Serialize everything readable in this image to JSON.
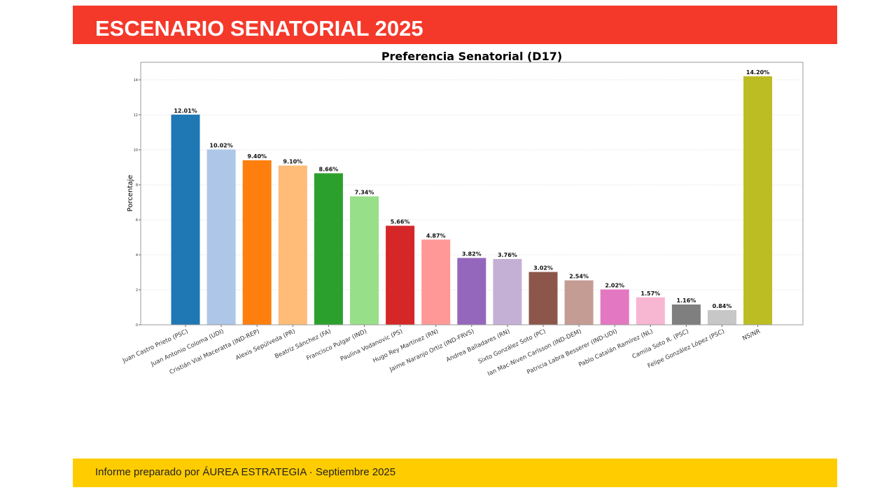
{
  "header": {
    "title": "ESCENARIO SENATORIAL 2025"
  },
  "footer": {
    "text": "Informe preparado por ÁUREA ESTRATEGIA · Septiembre 2025"
  },
  "chart_data": {
    "type": "bar",
    "title": "Preferencia Senatorial (D17)",
    "xlabel": "",
    "ylabel": "Porcentaje",
    "ylim": [
      0,
      15
    ],
    "yticks": [
      0,
      2,
      4,
      6,
      8,
      10,
      12,
      14
    ],
    "grid": "horizontal dotted",
    "categories": [
      "Juan Castro Prieto (PSC)",
      "Juan Antonio Coloma (UDI)",
      "Cristián Vial Maceratta (IND-REP)",
      "Alexis Sepúlveda (PR)",
      "Beatriz Sánchez (FA)",
      "Francisco Pulgar (IND)",
      "Paulina Vodanovic (PS)",
      "Hugo Rey Martínez (RN)",
      "Jaime Naranjo Ortiz (IND-FRVS)",
      "Andrea Balladares (RN)",
      "Sixto González Soto (PC)",
      "Ian Mac-Niven Carlsson (IND-DEM)",
      "Patricia Labra Besserer (IND-UDI)",
      "Pablo Catalán Ramírez (NL)",
      "Camila Soto R. (PSC)",
      "Felipe González López (PSC)",
      "NS/NR"
    ],
    "values": [
      12.01,
      10.02,
      9.4,
      9.1,
      8.66,
      7.34,
      5.66,
      4.87,
      3.82,
      3.76,
      3.02,
      2.54,
      2.02,
      1.57,
      1.16,
      0.84,
      14.2
    ],
    "data_labels": [
      "12.01%",
      "10.02%",
      "9.40%",
      "9.10%",
      "8.66%",
      "7.34%",
      "5.66%",
      "4.87%",
      "3.82%",
      "3.76%",
      "3.02%",
      "2.54%",
      "2.02%",
      "1.57%",
      "1.16%",
      "0.84%",
      "14.20%"
    ],
    "colors": [
      "#1f77b4",
      "#aec7e8",
      "#ff7f0e",
      "#ffbb78",
      "#2ca02c",
      "#98df8a",
      "#d62728",
      "#ff9896",
      "#9467bd",
      "#c5b0d5",
      "#8c564b",
      "#c49c94",
      "#e377c2",
      "#f7b6d2",
      "#7f7f7f",
      "#c7c7c7",
      "#bcbd22"
    ]
  }
}
